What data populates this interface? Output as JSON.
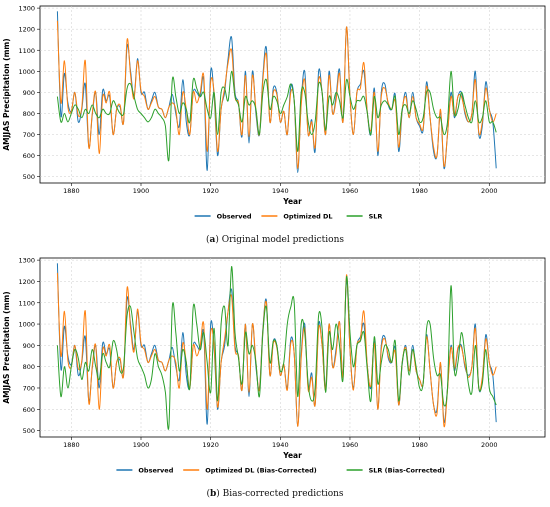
{
  "captions": {
    "a_letter": "a",
    "a_text": " Original model predictions",
    "b_letter": "b",
    "b_text": " Bias-corrected predictions"
  },
  "colors": {
    "observed": "#1f77b4",
    "dl": "#ff7f0e",
    "slr": "#2ca02c"
  },
  "chart_data": [
    {
      "type": "line",
      "xlabel": "Year",
      "ylabel": "AMJJAS Precipitation (mm)",
      "xlim": [
        1871,
        2016
      ],
      "ylim": [
        470,
        1310
      ],
      "xticks": [
        1880,
        1900,
        1920,
        1940,
        1960,
        1980,
        2000
      ],
      "yticks": [
        500,
        600,
        700,
        800,
        900,
        1000,
        1100,
        1200,
        1300
      ],
      "grid": true,
      "legend": "bottom-center",
      "x_start": 1876,
      "series": [
        {
          "name": "Observed",
          "color": "#1f77b4",
          "values": [
            1285,
            790,
            990,
            850,
            810,
            900,
            760,
            820,
            940,
            640,
            790,
            900,
            700,
            910,
            860,
            880,
            700,
            820,
            830,
            760,
            1120,
            1000,
            880,
            1060,
            900,
            900,
            820,
            860,
            900,
            830,
            820,
            780,
            830,
            890,
            800,
            740,
            960,
            760,
            700,
            900,
            900,
            880,
            960,
            530,
            1000,
            880,
            600,
            820,
            900,
            1060,
            1160,
            900,
            850,
            690,
            1000,
            660,
            1000,
            800,
            700,
            980,
            1110,
            760,
            920,
            900,
            760,
            810,
            700,
            930,
            860,
            520,
            860,
            1000,
            700,
            770,
            620,
            1000,
            900,
            700,
            1000,
            800,
            880,
            1010,
            760,
            1210,
            880,
            700,
            900,
            940,
            1000,
            800,
            700,
            920,
            600,
            900,
            940,
            840,
            820,
            890,
            620,
            810,
            900,
            780,
            900,
            780,
            740,
            720,
            950,
            780,
            620,
            600,
            810,
            540,
            700,
            900,
            780,
            880,
            900,
            800,
            760,
            800,
            1000,
            700,
            740,
            950,
            820,
            760,
            540
          ]
        },
        {
          "name": "Optimized DL",
          "color": "#ff7f0e",
          "values": [
            1240,
            850,
            1050,
            830,
            810,
            900,
            790,
            830,
            1050,
            640,
            800,
            900,
            610,
            880,
            850,
            900,
            700,
            820,
            840,
            760,
            1150,
            980,
            870,
            1050,
            910,
            880,
            820,
            850,
            880,
            830,
            820,
            780,
            830,
            850,
            820,
            700,
            900,
            820,
            700,
            900,
            850,
            900,
            980,
            620,
            950,
            900,
            620,
            820,
            920,
            1040,
            1100,
            880,
            850,
            700,
            980,
            690,
            980,
            820,
            700,
            960,
            1080,
            760,
            900,
            890,
            760,
            810,
            700,
            900,
            860,
            540,
            840,
            960,
            700,
            760,
            640,
            960,
            900,
            700,
            980,
            800,
            860,
            990,
            760,
            1210,
            880,
            700,
            900,
            920,
            1040,
            800,
            720,
            900,
            620,
            880,
            920,
            850,
            820,
            860,
            640,
            820,
            880,
            780,
            880,
            780,
            750,
            730,
            930,
            780,
            640,
            600,
            820,
            550,
            700,
            880,
            790,
            880,
            880,
            810,
            760,
            800,
            960,
            710,
            760,
            920,
            820,
            760,
            800
          ]
        },
        {
          "name": "SLR",
          "color": "#2ca02c",
          "values": [
            880,
            760,
            800,
            760,
            800,
            840,
            820,
            780,
            820,
            800,
            840,
            800,
            780,
            820,
            800,
            800,
            860,
            830,
            800,
            800,
            920,
            940,
            880,
            820,
            800,
            780,
            760,
            780,
            820,
            800,
            780,
            740,
            580,
            960,
            880,
            800,
            850,
            820,
            760,
            960,
            920,
            880,
            900,
            820,
            780,
            900,
            700,
            900,
            920,
            860,
            1000,
            880,
            840,
            760,
            880,
            840,
            860,
            820,
            700,
            900,
            960,
            820,
            880,
            860,
            800,
            840,
            880,
            940,
            860,
            620,
            900,
            900,
            760,
            700,
            760,
            940,
            900,
            720,
            880,
            840,
            900,
            860,
            780,
            960,
            880,
            820,
            860,
            860,
            880,
            800,
            700,
            880,
            780,
            840,
            860,
            840,
            820,
            880,
            700,
            820,
            840,
            800,
            860,
            820,
            760,
            780,
            900,
            900,
            820,
            780,
            780,
            700,
            760,
            1000,
            800,
            820,
            900,
            840,
            780,
            760,
            860,
            760,
            780,
            860,
            760,
            760,
            710
          ]
        }
      ]
    },
    {
      "type": "line",
      "xlabel": "Year",
      "ylabel": "AMJJAS Precipitation (mm)",
      "xlim": [
        1871,
        2016
      ],
      "ylim": [
        470,
        1310
      ],
      "xticks": [
        1880,
        1900,
        1920,
        1940,
        1960,
        1980,
        2000
      ],
      "yticks": [
        500,
        600,
        700,
        800,
        900,
        1000,
        1100,
        1200,
        1300
      ],
      "grid": true,
      "legend": "bottom-center",
      "x_start": 1876,
      "series": [
        {
          "name": "Observed",
          "color": "#1f77b4",
          "values": [
            1285,
            790,
            990,
            850,
            810,
            900,
            760,
            820,
            940,
            640,
            790,
            900,
            700,
            910,
            860,
            880,
            700,
            820,
            830,
            760,
            1120,
            1000,
            880,
            1060,
            900,
            900,
            820,
            860,
            900,
            830,
            820,
            780,
            830,
            890,
            800,
            740,
            960,
            760,
            700,
            900,
            900,
            880,
            960,
            530,
            1000,
            880,
            600,
            820,
            900,
            1060,
            1160,
            900,
            850,
            690,
            1000,
            660,
            1000,
            800,
            700,
            980,
            1110,
            760,
            920,
            900,
            760,
            810,
            700,
            930,
            860,
            520,
            860,
            1000,
            700,
            770,
            620,
            1000,
            900,
            700,
            1000,
            800,
            880,
            1010,
            760,
            1210,
            880,
            700,
            900,
            940,
            1000,
            800,
            700,
            920,
            600,
            900,
            940,
            840,
            820,
            890,
            620,
            810,
            900,
            780,
            900,
            780,
            740,
            720,
            950,
            780,
            620,
            600,
            810,
            540,
            700,
            900,
            780,
            880,
            900,
            800,
            760,
            800,
            1000,
            700,
            740,
            950,
            820,
            760,
            540
          ]
        },
        {
          "name": "Optimized DL (Bias-Corrected)",
          "color": "#ff7f0e",
          "values": [
            1240,
            850,
            1060,
            830,
            800,
            900,
            790,
            830,
            1060,
            630,
            800,
            900,
            600,
            880,
            850,
            900,
            700,
            820,
            840,
            760,
            1170,
            980,
            870,
            1070,
            910,
            880,
            820,
            850,
            880,
            830,
            820,
            780,
            830,
            850,
            820,
            700,
            910,
            820,
            700,
            900,
            850,
            900,
            1000,
            600,
            960,
            900,
            610,
            820,
            930,
            1060,
            1130,
            880,
            850,
            690,
            1000,
            680,
            1000,
            820,
            690,
            970,
            1100,
            760,
            910,
            890,
            760,
            810,
            690,
            910,
            860,
            520,
            840,
            980,
            690,
            750,
            620,
            980,
            900,
            690,
            1000,
            800,
            860,
            1010,
            750,
            1230,
            880,
            690,
            900,
            930,
            1060,
            800,
            710,
            910,
            600,
            880,
            930,
            850,
            820,
            870,
            620,
            820,
            890,
            780,
            880,
            780,
            740,
            720,
            940,
            780,
            620,
            580,
            820,
            520,
            690,
            890,
            790,
            890,
            890,
            810,
            750,
            800,
            980,
            700,
            750,
            930,
            820,
            760,
            800
          ]
        },
        {
          "name": "SLR (Bias-Corrected)",
          "color": "#2ca02c",
          "values": [
            900,
            660,
            800,
            700,
            800,
            880,
            840,
            740,
            820,
            780,
            880,
            800,
            740,
            860,
            820,
            800,
            920,
            880,
            780,
            800,
            1040,
            1080,
            960,
            840,
            800,
            760,
            700,
            740,
            860,
            800,
            760,
            680,
            520,
            1080,
            960,
            780,
            880,
            820,
            700,
            1080,
            1000,
            880,
            960,
            820,
            680,
            980,
            640,
            1000,
            1080,
            900,
            1270,
            960,
            840,
            720,
            960,
            860,
            900,
            820,
            660,
            960,
            1080,
            820,
            920,
            900,
            780,
            820,
            1000,
            1080,
            1100,
            660,
            1000,
            960,
            720,
            640,
            700,
            1040,
            980,
            680,
            960,
            880,
            1000,
            900,
            740,
            1220,
            960,
            800,
            900,
            920,
            960,
            780,
            640,
            940,
            720,
            820,
            900,
            880,
            820,
            920,
            640,
            820,
            880,
            760,
            880,
            800,
            700,
            720,
            980,
            1000,
            840,
            760,
            760,
            620,
            700,
            1180,
            780,
            820,
            960,
            860,
            720,
            680,
            900,
            700,
            720,
            880,
            700,
            660,
            620
          ]
        }
      ]
    }
  ]
}
